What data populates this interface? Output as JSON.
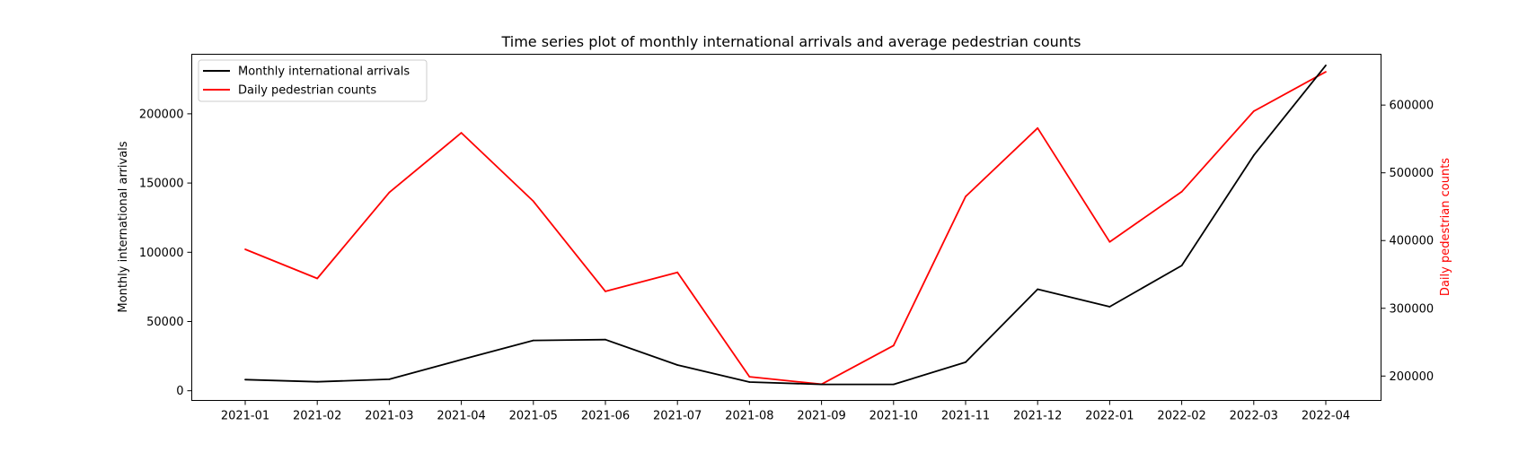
{
  "chart_data": {
    "type": "line",
    "title": "Time series plot of monthly international arrivals and average pedestrian counts",
    "xlabel": "",
    "x": [
      "2021-01",
      "2021-02",
      "2021-03",
      "2021-04",
      "2021-05",
      "2021-06",
      "2021-07",
      "2021-08",
      "2021-09",
      "2021-10",
      "2021-11",
      "2021-12",
      "2022-01",
      "2022-02",
      "2022-03",
      "2022-04"
    ],
    "y_left": {
      "label": "Monthly international arrivals",
      "ylim": [
        -7000,
        243000
      ],
      "ticks": [
        0,
        50000,
        100000,
        150000,
        200000
      ],
      "color": "#000000"
    },
    "y_right": {
      "label": "Daily pedestrian counts",
      "ylim": [
        164000,
        675000
      ],
      "ticks": [
        200000,
        300000,
        400000,
        500000,
        600000
      ],
      "color": "#ff0000"
    },
    "series": [
      {
        "name": "Monthly international arrivals",
        "axis": "left",
        "color": "#000000",
        "values": [
          8000,
          6500,
          8300,
          22500,
          36300,
          36900,
          18600,
          6300,
          4600,
          4600,
          20600,
          73300,
          60700,
          90400,
          170000,
          235000
        ]
      },
      {
        "name": "Daily pedestrian counts",
        "axis": "right",
        "color": "#ff0000",
        "values": [
          387000,
          344000,
          471000,
          559000,
          458000,
          325000,
          353000,
          199000,
          188000,
          245000,
          465000,
          566000,
          398000,
          472000,
          591000,
          649000
        ]
      }
    ],
    "legend": {
      "position": "top-left"
    },
    "grid": false
  }
}
